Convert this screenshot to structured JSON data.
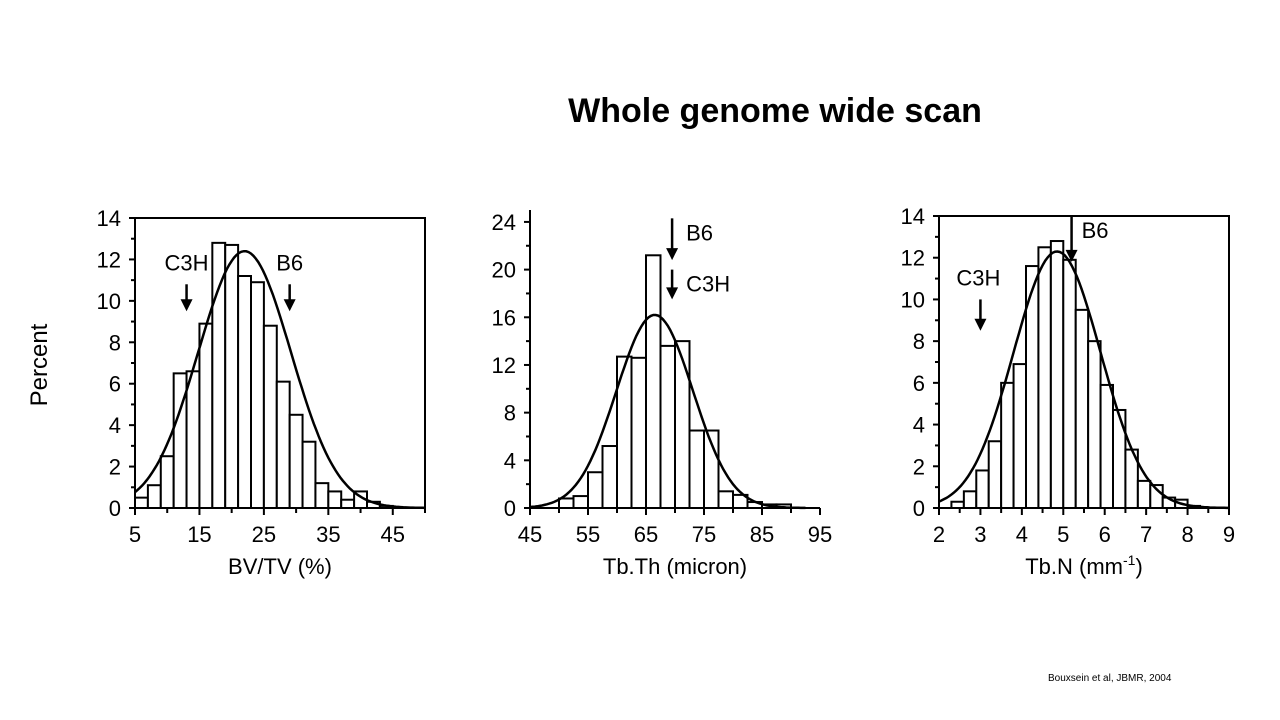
{
  "title": "Whole genome wide scan",
  "y_axis_label": "Percent",
  "citation": "Bouxsein et al, JBMR, 2004",
  "chart_data": [
    {
      "type": "bar",
      "xlabel": "BV/TV (%)",
      "ylabel": "Percent",
      "xlim": [
        5,
        50
      ],
      "ylim": [
        0,
        14
      ],
      "xticks": [
        5,
        15,
        25,
        35,
        45
      ],
      "yticks": [
        0,
        2,
        4,
        6,
        8,
        10,
        12,
        14
      ],
      "bin_width": 2,
      "bins": [
        {
          "x": 6,
          "value": 0.5
        },
        {
          "x": 8,
          "value": 1.1
        },
        {
          "x": 10,
          "value": 2.5
        },
        {
          "x": 12,
          "value": 6.5
        },
        {
          "x": 14,
          "value": 6.6
        },
        {
          "x": 16,
          "value": 8.9
        },
        {
          "x": 18,
          "value": 12.8
        },
        {
          "x": 20,
          "value": 12.7
        },
        {
          "x": 22,
          "value": 11.2
        },
        {
          "x": 24,
          "value": 10.9
        },
        {
          "x": 26,
          "value": 8.8
        },
        {
          "x": 28,
          "value": 6.1
        },
        {
          "x": 30,
          "value": 4.5
        },
        {
          "x": 32,
          "value": 3.2
        },
        {
          "x": 34,
          "value": 1.2
        },
        {
          "x": 36,
          "value": 0.8
        },
        {
          "x": 38,
          "value": 0.4
        },
        {
          "x": 40,
          "value": 0.8
        },
        {
          "x": 42,
          "value": 0.3
        },
        {
          "x": 44,
          "value": 0.1
        }
      ],
      "fit_curve": {
        "mean": 22,
        "sd": 7.2,
        "peak": 12.4
      },
      "annotations": [
        {
          "label": "C3H",
          "x": 13,
          "arrow_from": 10.8,
          "arrow_to": 9.5
        },
        {
          "label": "B6",
          "x": 29,
          "arrow_from": 10.8,
          "arrow_to": 9.5
        }
      ]
    },
    {
      "type": "bar",
      "xlabel": "Tb.Th (micron)",
      "ylabel": "",
      "xlim": [
        45,
        95
      ],
      "ylim": [
        0,
        25
      ],
      "xticks": [
        45,
        55,
        65,
        75,
        85,
        95
      ],
      "yticks": [
        0,
        4,
        8,
        12,
        16,
        20,
        24
      ],
      "bin_width": 2.5,
      "bins": [
        {
          "x": 51.25,
          "value": 0.8
        },
        {
          "x": 53.75,
          "value": 1.0
        },
        {
          "x": 56.25,
          "value": 3.0
        },
        {
          "x": 58.75,
          "value": 5.2
        },
        {
          "x": 61.25,
          "value": 12.7
        },
        {
          "x": 63.75,
          "value": 12.6
        },
        {
          "x": 66.25,
          "value": 21.2
        },
        {
          "x": 68.75,
          "value": 13.6
        },
        {
          "x": 71.25,
          "value": 14.0
        },
        {
          "x": 73.75,
          "value": 6.5
        },
        {
          "x": 76.25,
          "value": 6.5
        },
        {
          "x": 78.75,
          "value": 1.4
        },
        {
          "x": 81.25,
          "value": 1.1
        },
        {
          "x": 83.75,
          "value": 0.5
        },
        {
          "x": 86.25,
          "value": 0.3
        },
        {
          "x": 88.75,
          "value": 0.3
        }
      ],
      "fit_curve": {
        "mean": 66.5,
        "sd": 6.6,
        "peak": 16.2
      },
      "annotations": [
        {
          "label": "B6",
          "x": 69.5,
          "arrow_from": 24.3,
          "arrow_to": 20.8
        },
        {
          "label": "C3H",
          "x": 69.5,
          "arrow_from": 20.0,
          "arrow_to": 17.5
        }
      ]
    },
    {
      "type": "bar",
      "xlabel": "Tb.N (mm⁻¹)",
      "ylabel": "",
      "xlim": [
        2,
        9
      ],
      "ylim": [
        0,
        14
      ],
      "xticks": [
        2,
        3,
        4,
        5,
        6,
        7,
        8,
        9
      ],
      "yticks": [
        0,
        2,
        4,
        6,
        8,
        10,
        12,
        14
      ],
      "bin_width": 0.3,
      "bins": [
        {
          "x": 2.45,
          "value": 0.3
        },
        {
          "x": 2.75,
          "value": 0.8
        },
        {
          "x": 3.05,
          "value": 1.8
        },
        {
          "x": 3.35,
          "value": 3.2
        },
        {
          "x": 3.65,
          "value": 6.0
        },
        {
          "x": 3.95,
          "value": 6.9
        },
        {
          "x": 4.25,
          "value": 11.6
        },
        {
          "x": 4.55,
          "value": 12.5
        },
        {
          "x": 4.85,
          "value": 12.8
        },
        {
          "x": 5.15,
          "value": 11.9
        },
        {
          "x": 5.45,
          "value": 9.5
        },
        {
          "x": 5.75,
          "value": 8.0
        },
        {
          "x": 6.05,
          "value": 5.9
        },
        {
          "x": 6.35,
          "value": 4.7
        },
        {
          "x": 6.65,
          "value": 2.8
        },
        {
          "x": 6.95,
          "value": 1.3
        },
        {
          "x": 7.25,
          "value": 1.1
        },
        {
          "x": 7.55,
          "value": 0.5
        },
        {
          "x": 7.85,
          "value": 0.4
        },
        {
          "x": 8.15,
          "value": 0.1
        }
      ],
      "fit_curve": {
        "mean": 4.85,
        "sd": 1.05,
        "peak": 12.3
      },
      "annotations": [
        {
          "label": "B6",
          "x": 5.2,
          "arrow_from": 14.0,
          "arrow_to": 11.8
        },
        {
          "label": "C3H",
          "x": 3.0,
          "arrow_from": 10.0,
          "arrow_to": 8.5
        }
      ]
    }
  ]
}
